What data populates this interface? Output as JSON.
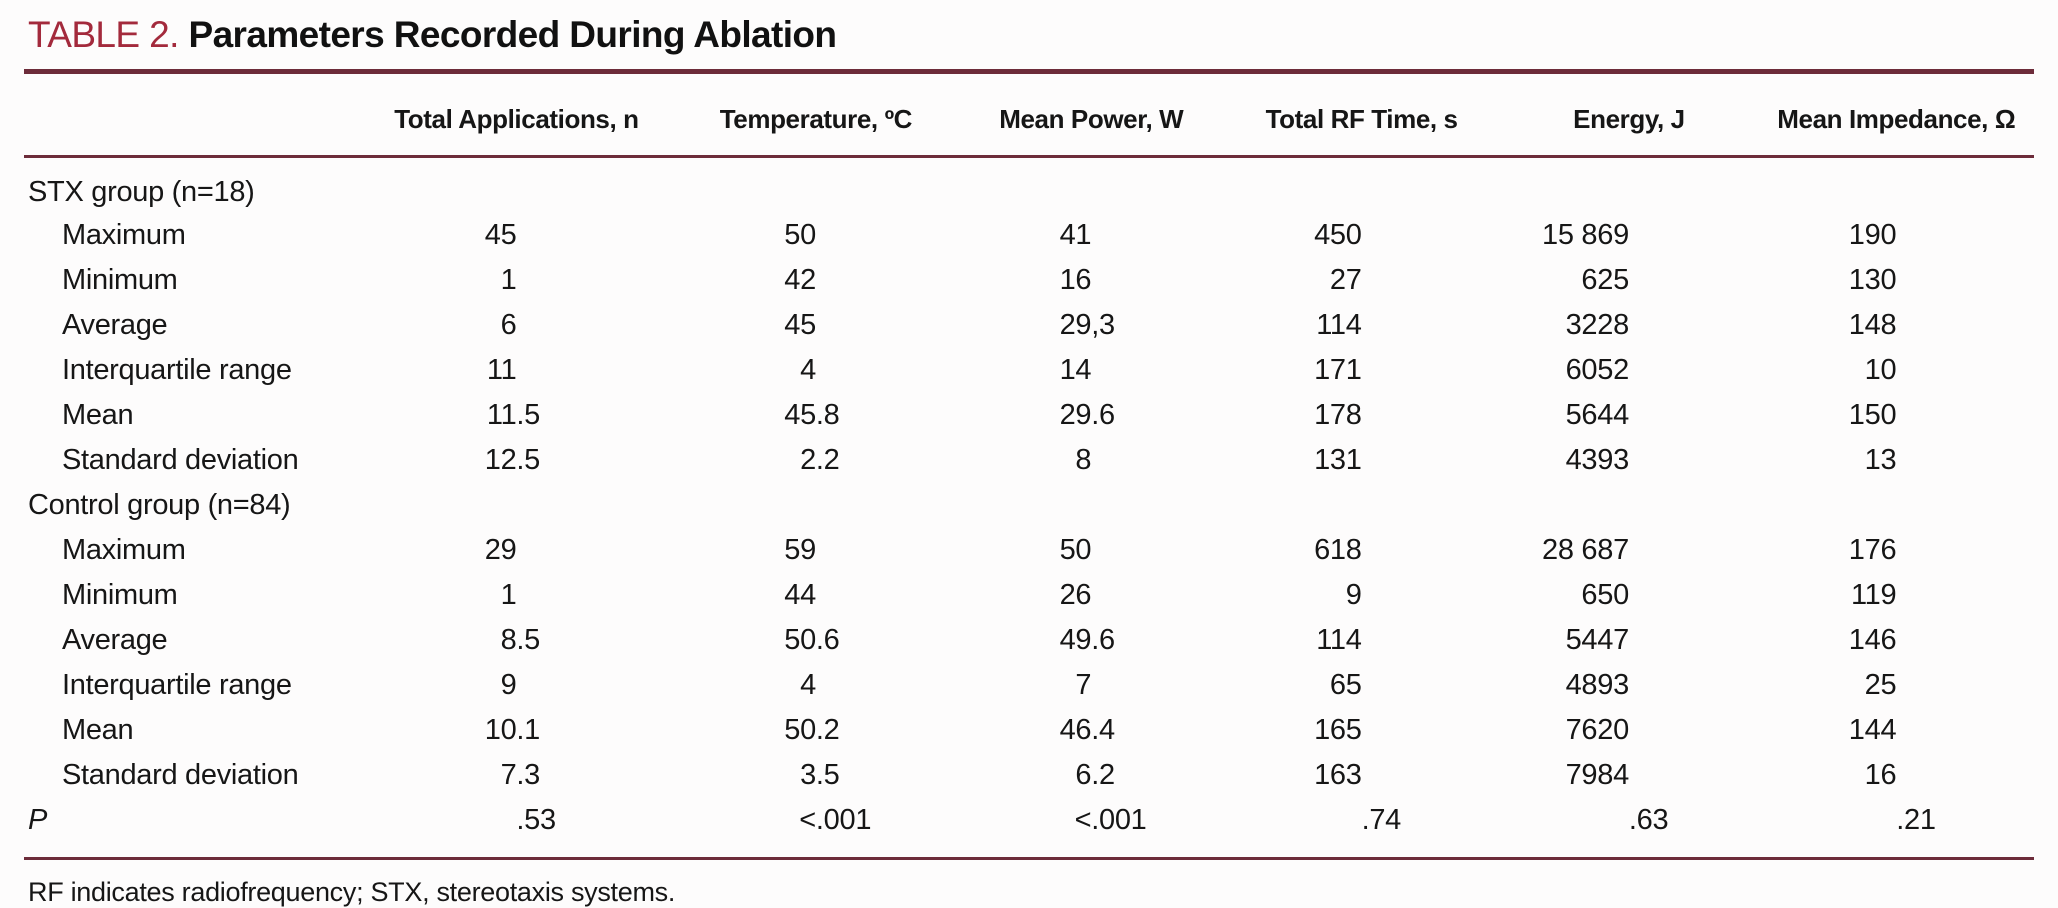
{
  "table": {
    "caption_label": "TABLE 2.",
    "caption_title": "Parameters Recorded During Ablation",
    "columns": [
      "Total Applications, n",
      "Temperature, ºC",
      "Mean Power, W",
      "Total RF Time, s",
      "Energy, J",
      "Mean Impedance, Ω"
    ],
    "sections": [
      {
        "header": "STX group (n=18)",
        "rows": [
          {
            "label": "Maximum",
            "values": [
              "45",
              "50",
              "41",
              "450",
              "15 869",
              "190"
            ]
          },
          {
            "label": "Minimum",
            "values": [
              "1",
              "42",
              "16",
              "27",
              "625",
              "130"
            ]
          },
          {
            "label": "Average",
            "values": [
              "6",
              "45",
              "29,3",
              "114",
              "3228",
              "148"
            ]
          },
          {
            "label": "Interquartile range",
            "values": [
              "11",
              "4",
              "14",
              "171",
              "6052",
              "10"
            ]
          },
          {
            "label": "Mean",
            "values": [
              "11.5",
              "45.8",
              "29.6",
              "178",
              "5644",
              "150"
            ]
          },
          {
            "label": "Standard deviation",
            "values": [
              "12.5",
              "2.2",
              "8",
              "131",
              "4393",
              "13"
            ]
          }
        ]
      },
      {
        "header": "Control group (n=84)",
        "rows": [
          {
            "label": "Maximum",
            "values": [
              "29",
              "59",
              "50",
              "618",
              "28 687",
              "176"
            ]
          },
          {
            "label": "Minimum",
            "values": [
              "1",
              "44",
              "26",
              "9",
              "650",
              "119"
            ]
          },
          {
            "label": "Average",
            "values": [
              "8.5",
              "50.6",
              "49.6",
              "114",
              "5447",
              "146"
            ]
          },
          {
            "label": "Interquartile range",
            "values": [
              "9",
              "4",
              "7",
              "65",
              "4893",
              "25"
            ]
          },
          {
            "label": "Mean",
            "values": [
              "10.1",
              "50.2",
              "46.4",
              "165",
              "7620",
              "144"
            ]
          },
          {
            "label": "Standard deviation",
            "values": [
              "7.3",
              "3.5",
              "6.2",
              "163",
              "7984",
              "16"
            ]
          }
        ]
      }
    ],
    "p_row": {
      "label": "P",
      "values": [
        ".53",
        "<.001",
        "<.001",
        ".74",
        ".63",
        ".21"
      ]
    },
    "footnote": "RF indicates radiofrequency; STX, stereotaxis systems.",
    "colors": {
      "accent_red": "#a32a3c",
      "rule_maroon": "#6d2c3a"
    }
  }
}
